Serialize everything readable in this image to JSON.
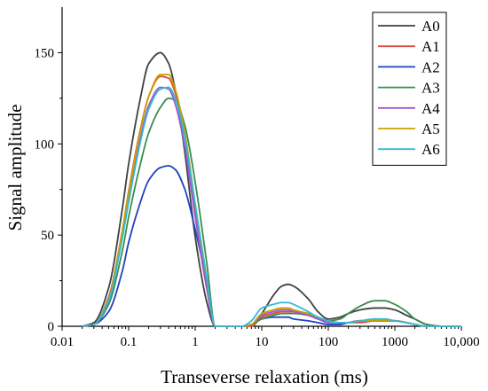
{
  "chart_data": {
    "type": "line",
    "xlabel": "Transeverse relaxation (ms)",
    "ylabel": "Signal amplitude",
    "xscale": "log",
    "xlim": [
      0.01,
      10000
    ],
    "ylim": [
      0,
      175
    ],
    "x_ticks": [
      "0.01",
      "0.1",
      "1",
      "10",
      "100",
      "1000",
      "10,000"
    ],
    "y_ticks": [
      "0",
      "50",
      "100",
      "150"
    ],
    "legend_position": "top-right",
    "grid": false,
    "x": [
      0.02,
      0.03,
      0.05,
      0.08,
      0.1,
      0.15,
      0.2,
      0.3,
      0.4,
      0.5,
      0.7,
      1.0,
      1.5,
      2.0,
      3.0,
      5.0,
      7.0,
      10,
      15,
      20,
      25,
      30,
      50,
      70,
      100,
      150,
      200,
      300,
      500,
      700,
      1000,
      1500,
      2000,
      3000,
      5000,
      7000,
      10000
    ],
    "series": [
      {
        "name": "A0",
        "color": "#404040",
        "values": [
          0,
          2,
          21,
          64,
          89,
          125,
          144,
          150,
          144,
          130,
          95,
          49,
          13,
          0,
          0,
          0,
          1,
          7,
          17,
          22,
          23,
          22,
          15,
          8,
          4,
          5,
          7,
          9,
          10,
          10,
          9,
          6,
          4,
          1,
          0,
          0,
          0
        ]
      },
      {
        "name": "A1",
        "color": "#d94f3b",
        "values": [
          0,
          1,
          16,
          52,
          74,
          108,
          126,
          137,
          136,
          128,
          103,
          63,
          22,
          0,
          0,
          0,
          0,
          5,
          7,
          8,
          8,
          8,
          7,
          5,
          3,
          2,
          2,
          2,
          3,
          3,
          3,
          2,
          1,
          0,
          0,
          0,
          0
        ]
      },
      {
        "name": "A2",
        "color": "#2040c0",
        "values": [
          0,
          1,
          8,
          30,
          46,
          68,
          80,
          87,
          88,
          86,
          75,
          53,
          24,
          0,
          0,
          0,
          1,
          4,
          5,
          5,
          5,
          4,
          3,
          2,
          1,
          1,
          2,
          3,
          3,
          3,
          3,
          2,
          1,
          0,
          0,
          0,
          0
        ]
      },
      {
        "name": "A3",
        "color": "#3a8c50",
        "values": [
          0,
          1,
          12,
          41,
          60,
          89,
          106,
          120,
          125,
          124,
          110,
          79,
          34,
          0,
          0,
          0,
          1,
          4,
          6,
          7,
          7,
          7,
          6,
          4,
          3,
          4,
          7,
          11,
          14,
          14,
          12,
          8,
          4,
          1,
          0,
          0,
          0
        ]
      },
      {
        "name": "A4",
        "color": "#9b59d0",
        "values": [
          0,
          1,
          15,
          50,
          71,
          103,
          121,
          131,
          130,
          122,
          98,
          60,
          20,
          0,
          0,
          0,
          1,
          6,
          8,
          9,
          9,
          8,
          6,
          4,
          2,
          2,
          2,
          3,
          3,
          3,
          3,
          2,
          1,
          0,
          0,
          0,
          0
        ]
      },
      {
        "name": "A5",
        "color": "#c8a000",
        "values": [
          0,
          1,
          15,
          52,
          73,
          107,
          126,
          138,
          138,
          130,
          106,
          67,
          25,
          0,
          0,
          0,
          1,
          7,
          9,
          10,
          10,
          9,
          7,
          5,
          3,
          2,
          2,
          3,
          3,
          3,
          3,
          2,
          1,
          0,
          0,
          0,
          0
        ]
      },
      {
        "name": "A6",
        "color": "#33b8d8",
        "values": [
          0,
          1,
          14,
          48,
          68,
          101,
          119,
          130,
          131,
          125,
          103,
          67,
          26,
          0,
          0,
          0,
          3,
          10,
          12,
          13,
          13,
          12,
          8,
          5,
          3,
          2,
          2,
          3,
          4,
          4,
          3,
          2,
          1,
          0,
          0,
          0,
          0
        ]
      }
    ]
  }
}
